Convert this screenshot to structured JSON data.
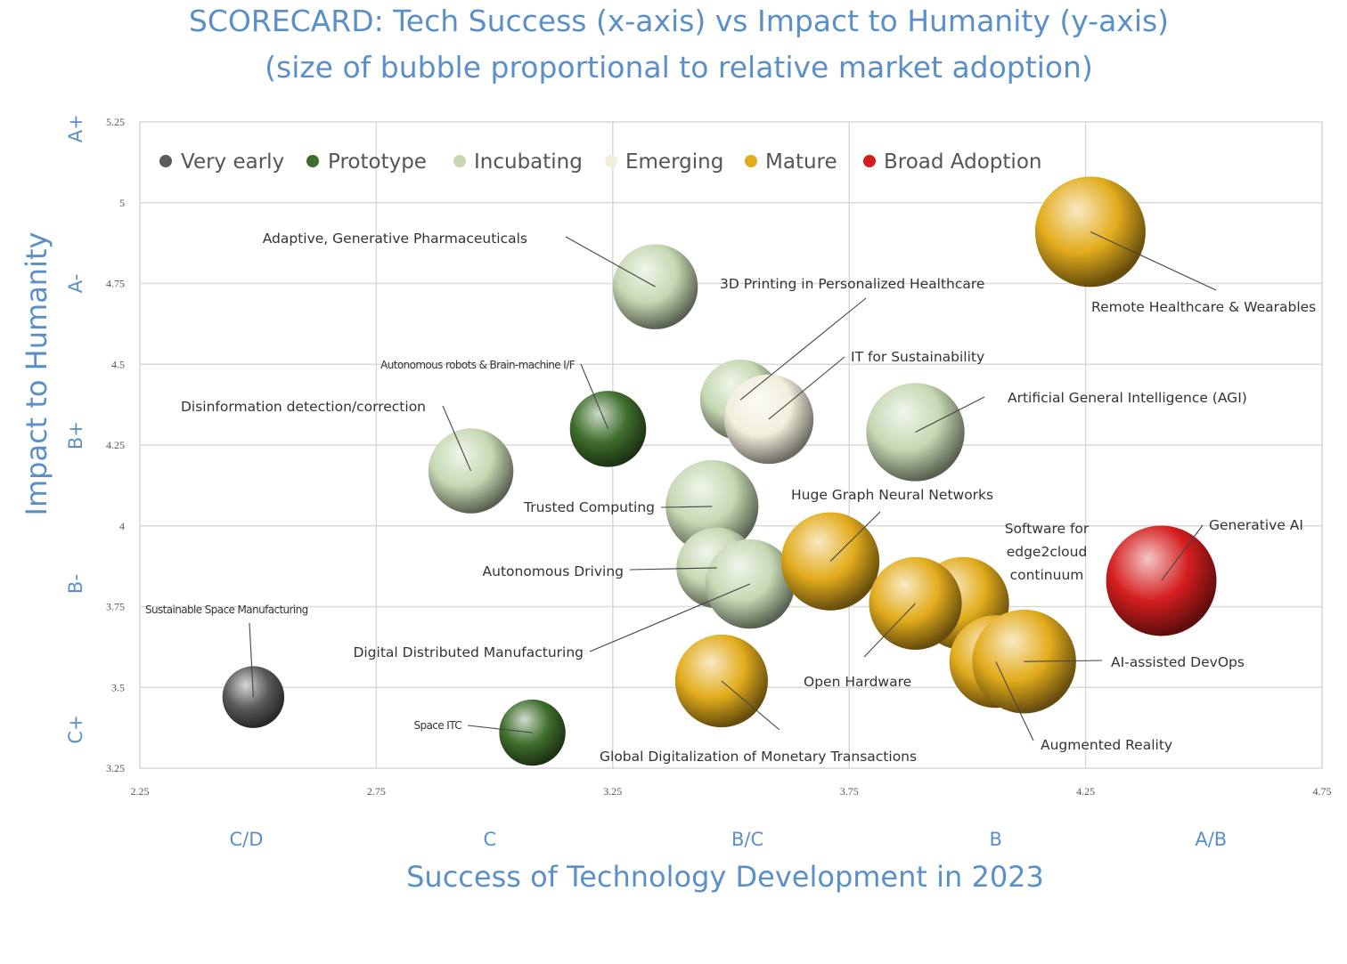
{
  "chart_data": {
    "type": "bubble",
    "title": [
      "SCORECARD: Tech Success (x-axis) vs Impact to Humanity (y-axis)",
      "(size of bubble proportional to relative market adoption)"
    ],
    "xlabel": "Success of Technology Development in 2023",
    "ylabel": "Impact to Humanity",
    "xlim": [
      2.25,
      4.75
    ],
    "ylim": [
      3.25,
      5.25
    ],
    "x_ticks": [
      "2.25",
      "2.75",
      "3.25",
      "3.75",
      "4.25",
      "4.75"
    ],
    "y_ticks": [
      "5.25",
      "5",
      "4.75",
      "4.5",
      "4.25",
      "4",
      "3.75",
      "3.5",
      "3.25"
    ],
    "x_grades": [
      {
        "label": "C/D",
        "x": 2.475
      },
      {
        "label": "C",
        "x": 2.99
      },
      {
        "label": "B/C",
        "x": 3.535
      },
      {
        "label": "B",
        "x": 4.06
      },
      {
        "label": "A/B",
        "x": 4.515
      }
    ],
    "y_grades": [
      {
        "label": "A+",
        "y": 5.23
      },
      {
        "label": "A-",
        "y": 4.75
      },
      {
        "label": "B+",
        "y": 4.28
      },
      {
        "label": "B-",
        "y": 3.82
      },
      {
        "label": "C+",
        "y": 3.37
      }
    ],
    "grid": true,
    "legend_position": "top",
    "categories": [
      {
        "name": "Very early",
        "color": "#5a5a5a"
      },
      {
        "name": "Prototype",
        "color": "#3f6e2c"
      },
      {
        "name": "Incubating",
        "color": "#c5d8b2"
      },
      {
        "name": "Emerging",
        "color": "#f2eedc"
      },
      {
        "name": "Mature",
        "color": "#e2ac1c"
      },
      {
        "name": "Broad Adoption",
        "color": "#d41e1e"
      }
    ],
    "points": [
      {
        "label": "Adaptive, Generative Pharmaceuticals",
        "x": 3.34,
        "y": 4.74,
        "size": 0.77,
        "category": "Incubating"
      },
      {
        "label": "3D Printing in Personalized Healthcare",
        "x": 3.52,
        "y": 4.39,
        "size": 0.73,
        "category": "Incubating"
      },
      {
        "label": "IT for Sustainability",
        "x": 3.58,
        "y": 4.33,
        "size": 0.81,
        "category": "Emerging"
      },
      {
        "label": "Artificial General Intelligence (AGI)",
        "x": 3.89,
        "y": 4.29,
        "size": 0.89,
        "category": "Incubating"
      },
      {
        "label": "Remote Healthcare & Wearables",
        "x": 4.26,
        "y": 4.91,
        "size": 1.0,
        "category": "Mature"
      },
      {
        "label": "Autonomous robots & Brain-machine I/F",
        "x": 3.24,
        "y": 4.3,
        "size": 0.69,
        "category": "Prototype"
      },
      {
        "label": "Disinformation detection/correction",
        "x": 2.95,
        "y": 4.17,
        "size": 0.77,
        "category": "Incubating"
      },
      {
        "label": "Trusted Computing",
        "x": 3.46,
        "y": 4.06,
        "size": 0.84,
        "category": "Incubating"
      },
      {
        "label": "Autonomous Driving",
        "x": 3.47,
        "y": 3.87,
        "size": 0.73,
        "category": "Incubating"
      },
      {
        "label": "Digital Distributed Manufacturing",
        "x": 3.54,
        "y": 3.82,
        "size": 0.81,
        "category": "Incubating"
      },
      {
        "label": "Huge Graph Neural Networks",
        "x": 3.71,
        "y": 3.89,
        "size": 0.89,
        "category": "Mature"
      },
      {
        "label": "Software for edge2cloud continuum",
        "x": 3.99,
        "y": 3.76,
        "size": 0.84,
        "category": "Mature"
      },
      {
        "label": "Open Hardware",
        "x": 3.89,
        "y": 3.76,
        "size": 0.84,
        "category": "Mature"
      },
      {
        "label": "Augmented Reality",
        "x": 4.06,
        "y": 3.58,
        "size": 0.84,
        "category": "Mature"
      },
      {
        "label": "AI-assisted DevOps",
        "x": 4.12,
        "y": 3.58,
        "size": 0.94,
        "category": "Mature"
      },
      {
        "label": "Generative AI",
        "x": 4.41,
        "y": 3.83,
        "size": 1.0,
        "category": "Broad Adoption"
      },
      {
        "label": "Global Digitalization of Monetary Transactions",
        "x": 3.48,
        "y": 3.52,
        "size": 0.84,
        "category": "Mature"
      },
      {
        "label": "Space ITC",
        "x": 3.08,
        "y": 3.36,
        "size": 0.6,
        "category": "Prototype"
      },
      {
        "label": "Sustainable Space Manufacturing",
        "x": 2.49,
        "y": 3.47,
        "size": 0.56,
        "category": "Very early"
      }
    ]
  }
}
